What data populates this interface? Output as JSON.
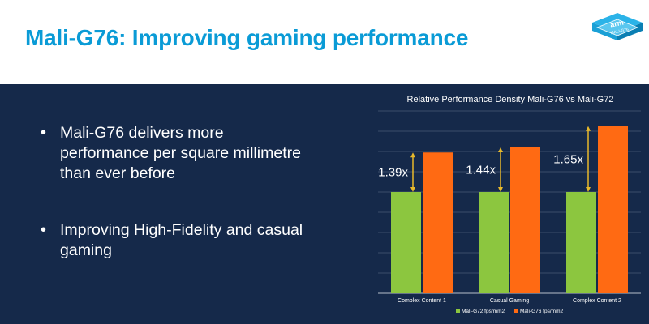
{
  "slide": {
    "title": "Mali-G76: Improving gaming performance",
    "bullets": [
      "Mali-G76 delivers more performance per square millimetre than ever before",
      "Improving High-Fidelity and casual gaming"
    ],
    "logo_text": "arm",
    "logo_subtext": "MALI-G76"
  },
  "colors": {
    "title": "#0a9bd6",
    "panel": "#15294a",
    "g72": "#8cc63f",
    "g76": "#ff6a13",
    "arrow": "#e8b92b"
  },
  "chart_data": {
    "type": "bar",
    "title": "Relative Performance Density Mali-G76 vs Mali-G72",
    "categories": [
      "Complex Content 1",
      "Casual Gaming",
      "Complex Content 2"
    ],
    "series": [
      {
        "name": "Mali-G72 fps/mm2",
        "values": [
          1.0,
          1.0,
          1.0
        ]
      },
      {
        "name": "Mali-G76 fps/mm2",
        "values": [
          1.39,
          1.44,
          1.65
        ]
      }
    ],
    "annotations": [
      "1.39x",
      "1.44x",
      "1.65x"
    ],
    "ylim": [
      0,
      1.8
    ],
    "grid": true,
    "legend": "bottom"
  }
}
